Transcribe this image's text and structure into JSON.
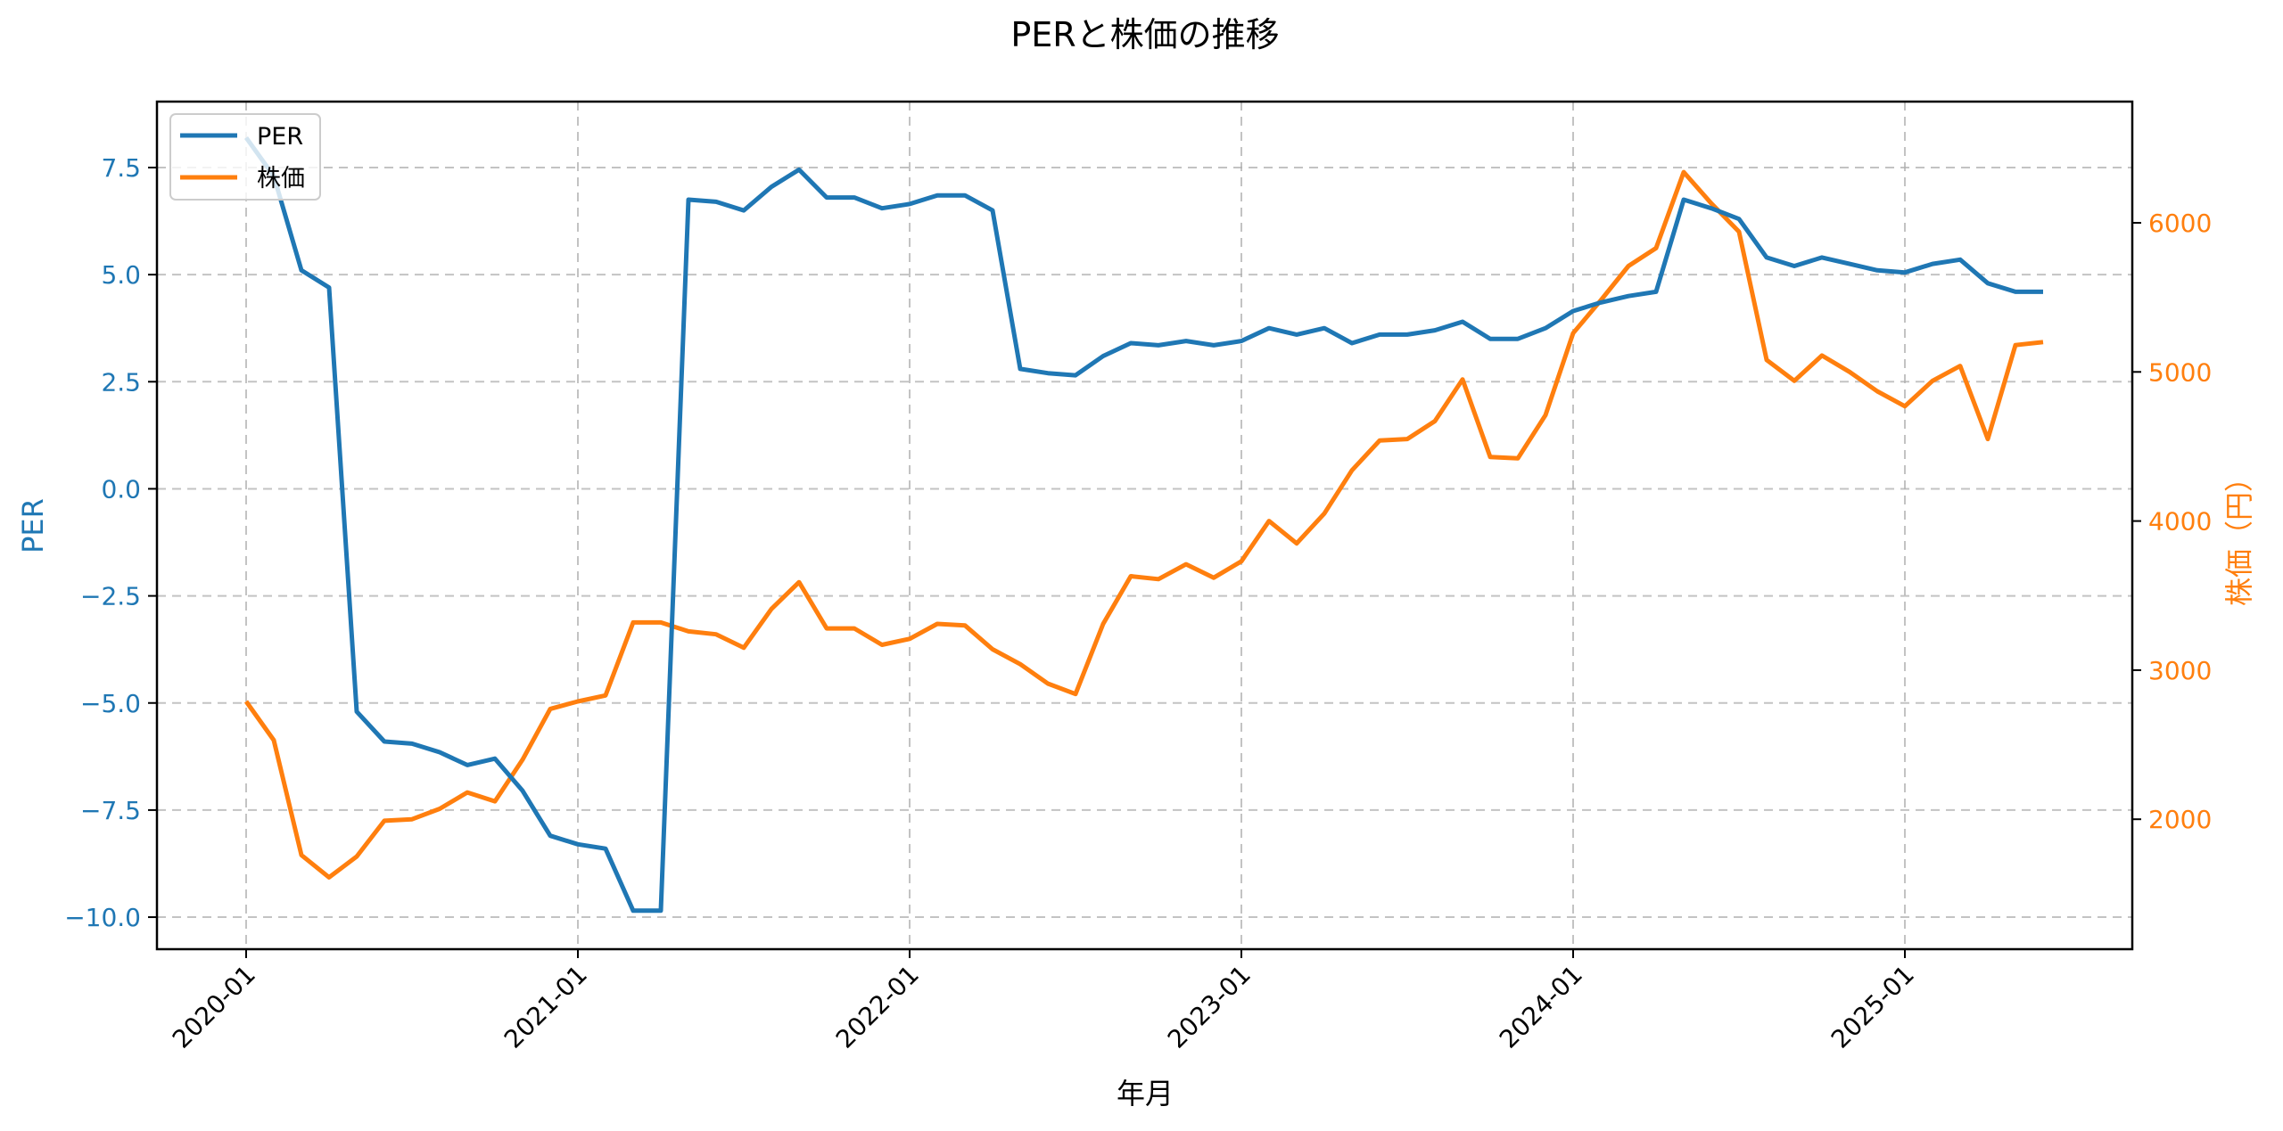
{
  "chart_data": {
    "type": "line",
    "title": "PERと株価の推移",
    "xlabel": "年月",
    "ylabel": "PER",
    "ylabel_right": "株価（円）",
    "grid": true,
    "legend_position": "upper left",
    "x_ticks": [
      "2020-01",
      "2021-01",
      "2022-01",
      "2023-01",
      "2024-01",
      "2025-01"
    ],
    "y_ticks_left": [
      "7.5",
      "5.0",
      "2.5",
      "0.0",
      "−2.5",
      "−5.0",
      "−7.5",
      "−10.0"
    ],
    "y_ticks_right": [
      "6000",
      "5000",
      "4000",
      "3000",
      "2000"
    ],
    "ylim": [
      -10.75,
      8.9
    ],
    "ylim_right": [
      1250,
      6850
    ],
    "colors": {
      "per": "#1f77b4",
      "price": "#ff7f0e"
    },
    "x_start": "2020-01",
    "x_end": "2025-06",
    "x": [
      "2020-01",
      "2020-02",
      "2020-03",
      "2020-04",
      "2020-05",
      "2020-06",
      "2020-07",
      "2020-08",
      "2020-09",
      "2020-10",
      "2020-11",
      "2020-12",
      "2021-01",
      "2021-02",
      "2021-03",
      "2021-04",
      "2021-05",
      "2021-06",
      "2021-07",
      "2021-08",
      "2021-09",
      "2021-10",
      "2021-11",
      "2021-12",
      "2022-01",
      "2022-02",
      "2022-03",
      "2022-04",
      "2022-05",
      "2022-06",
      "2022-07",
      "2022-08",
      "2022-09",
      "2022-10",
      "2022-11",
      "2022-12",
      "2023-01",
      "2023-02",
      "2023-03",
      "2023-04",
      "2023-05",
      "2023-06",
      "2023-07",
      "2023-08",
      "2023-09",
      "2023-10",
      "2023-11",
      "2023-12",
      "2024-01",
      "2024-02",
      "2024-03",
      "2024-04",
      "2024-05",
      "2024-06",
      "2024-07",
      "2024-08",
      "2024-09",
      "2024-10",
      "2024-11",
      "2024-12",
      "2025-01",
      "2025-02",
      "2025-03",
      "2025-04",
      "2025-05",
      "2025-06"
    ],
    "series": [
      {
        "name": "PER",
        "axis": "left",
        "values": [
          8.2,
          7.3,
          5.1,
          4.7,
          -5.2,
          -5.9,
          -5.95,
          -6.15,
          -6.45,
          -6.3,
          -7.05,
          -8.1,
          -8.3,
          -8.4,
          -9.85,
          -9.85,
          6.75,
          6.7,
          6.5,
          7.05,
          7.45,
          6.8,
          6.8,
          6.55,
          6.65,
          6.85,
          6.85,
          6.5,
          2.8,
          2.7,
          2.65,
          3.1,
          3.4,
          3.35,
          3.45,
          3.35,
          3.45,
          3.75,
          3.6,
          3.75,
          3.4,
          3.6,
          3.6,
          3.7,
          3.9,
          3.5,
          3.5,
          3.75,
          4.15,
          4.35,
          4.5,
          4.6,
          6.75,
          6.55,
          6.3,
          5.4,
          5.2,
          5.4,
          5.25,
          5.1,
          5.05,
          5.25,
          5.35,
          4.8,
          4.6,
          4.6
        ]
      },
      {
        "name": "株価",
        "axis": "right",
        "values": [
          2790,
          2530,
          1760,
          1610,
          1750,
          1990,
          2000,
          2070,
          2180,
          2120,
          2400,
          2740,
          2790,
          2830,
          3320,
          3320,
          3260,
          3240,
          3150,
          3410,
          3590,
          3280,
          3280,
          3170,
          3210,
          3310,
          3300,
          3140,
          3040,
          2910,
          2840,
          3310,
          3630,
          3610,
          3710,
          3620,
          3730,
          4000,
          3850,
          4050,
          4340,
          4540,
          4550,
          4670,
          4950,
          4430,
          4420,
          4710,
          5260,
          5480,
          5710,
          5830,
          6340,
          6130,
          5940,
          5080,
          4940,
          5110,
          5000,
          4870,
          4770,
          4940,
          5040,
          4550,
          5180,
          5200
        ]
      }
    ]
  },
  "legend": {
    "items": [
      {
        "label": "PER",
        "color": "#1f77b4"
      },
      {
        "label": "株価",
        "color": "#ff7f0e"
      }
    ]
  }
}
